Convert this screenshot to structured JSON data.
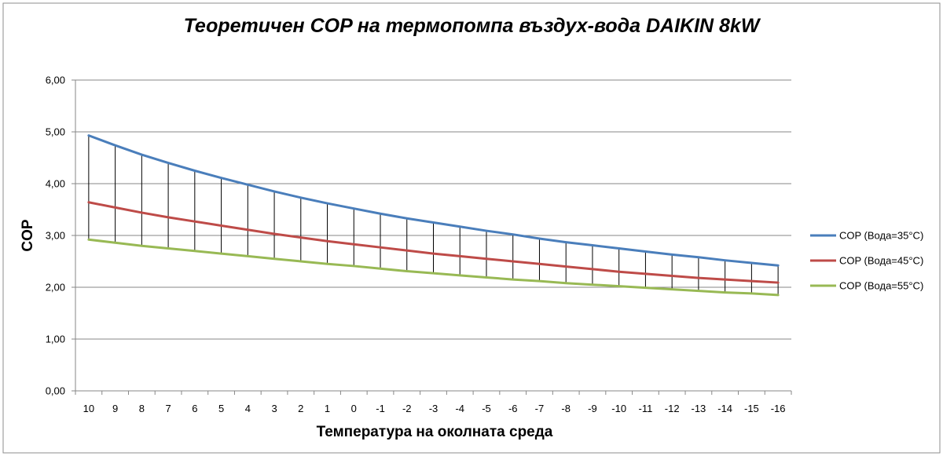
{
  "chart_data": {
    "type": "line",
    "title": "Теоретичен COP на термопомпа въздух-вода DAIKIN 8kW",
    "xlabel": "Температура на околната среда",
    "ylabel": "COP",
    "categories": [
      "10",
      "9",
      "8",
      "7",
      "6",
      "5",
      "4",
      "3",
      "2",
      "1",
      "0",
      "-1",
      "-2",
      "-3",
      "-4",
      "-5",
      "-6",
      "-7",
      "-8",
      "-9",
      "-10",
      "-11",
      "-12",
      "-13",
      "-14",
      "-15",
      "-16"
    ],
    "ylim": [
      0,
      6
    ],
    "y_ticks": [
      "0,00",
      "1,00",
      "2,00",
      "3,00",
      "4,00",
      "5,00",
      "6,00"
    ],
    "grid": true,
    "legend_position": "right",
    "drop_lines": true,
    "series": [
      {
        "name": "COP (Вода=35°C)",
        "color": "#4A7EBB",
        "values": [
          4.93,
          4.74,
          4.56,
          4.4,
          4.25,
          4.11,
          3.98,
          3.85,
          3.73,
          3.62,
          3.52,
          3.42,
          3.33,
          3.25,
          3.17,
          3.09,
          3.02,
          2.94,
          2.87,
          2.81,
          2.75,
          2.69,
          2.63,
          2.58,
          2.52,
          2.47,
          2.42
        ]
      },
      {
        "name": "COP (Вода=45°C)",
        "color": "#BE4B48",
        "values": [
          3.64,
          3.54,
          3.44,
          3.35,
          3.27,
          3.19,
          3.11,
          3.03,
          2.96,
          2.89,
          2.83,
          2.77,
          2.71,
          2.65,
          2.6,
          2.55,
          2.5,
          2.45,
          2.4,
          2.35,
          2.3,
          2.26,
          2.22,
          2.18,
          2.15,
          2.12,
          2.09
        ]
      },
      {
        "name": "COP (Вода=55°C)",
        "color": "#98B954",
        "values": [
          2.92,
          2.86,
          2.8,
          2.75,
          2.7,
          2.65,
          2.6,
          2.55,
          2.5,
          2.45,
          2.41,
          2.36,
          2.31,
          2.27,
          2.23,
          2.19,
          2.15,
          2.12,
          2.08,
          2.05,
          2.02,
          1.99,
          1.96,
          1.93,
          1.9,
          1.88,
          1.85
        ]
      }
    ]
  }
}
